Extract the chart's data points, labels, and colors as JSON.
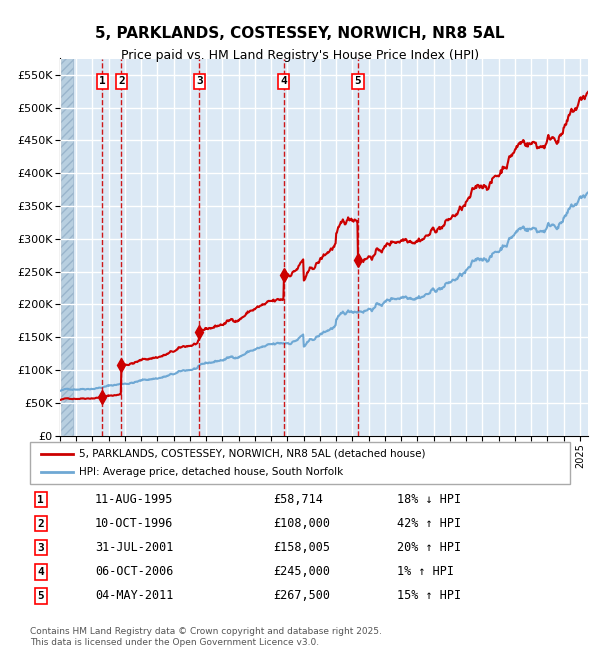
{
  "title_line1": "5, PARKLANDS, COSTESSEY, NORWICH, NR8 5AL",
  "title_line2": "Price paid vs. HM Land Registry's House Price Index (HPI)",
  "transactions": [
    {
      "num": 1,
      "date": "11-AUG-1995",
      "price": 58714,
      "year": 1995.61,
      "pct": "18%",
      "dir": "↓"
    },
    {
      "num": 2,
      "date": "10-OCT-1996",
      "price": 108000,
      "year": 1996.78,
      "pct": "42%",
      "dir": "↑"
    },
    {
      "num": 3,
      "date": "31-JUL-2001",
      "price": 158005,
      "year": 2001.58,
      "pct": "20%",
      "dir": "↑"
    },
    {
      "num": 4,
      "date": "06-OCT-2006",
      "price": 245000,
      "year": 2006.76,
      "pct": "1%",
      "dir": "↑"
    },
    {
      "num": 5,
      "date": "04-MAY-2011",
      "price": 267500,
      "year": 2011.34,
      "pct": "15%",
      "dir": "↑"
    }
  ],
  "hpi_color": "#6fa8d4",
  "price_color": "#cc0000",
  "marker_color": "#cc0000",
  "dashed_color": "#cc0000",
  "background_plot": "#dce9f5",
  "background_hatch": "#c8d8ea",
  "grid_color": "#ffffff",
  "legend_label_price": "5, PARKLANDS, COSTESSEY, NORWICH, NR8 5AL (detached house)",
  "legend_label_hpi": "HPI: Average price, detached house, South Norfolk",
  "footer": "Contains HM Land Registry data © Crown copyright and database right 2025.\nThis data is licensed under the Open Government Licence v3.0.",
  "ylim": [
    0,
    575000
  ],
  "yticks": [
    0,
    50000,
    100000,
    150000,
    200000,
    250000,
    300000,
    350000,
    400000,
    450000,
    500000,
    550000
  ],
  "ytick_labels": [
    "£0",
    "£50K",
    "£100K",
    "£150K",
    "£200K",
    "£250K",
    "£300K",
    "£350K",
    "£400K",
    "£450K",
    "£500K",
    "£550K"
  ],
  "xlim_start": 1993.0,
  "xlim_end": 2025.5
}
